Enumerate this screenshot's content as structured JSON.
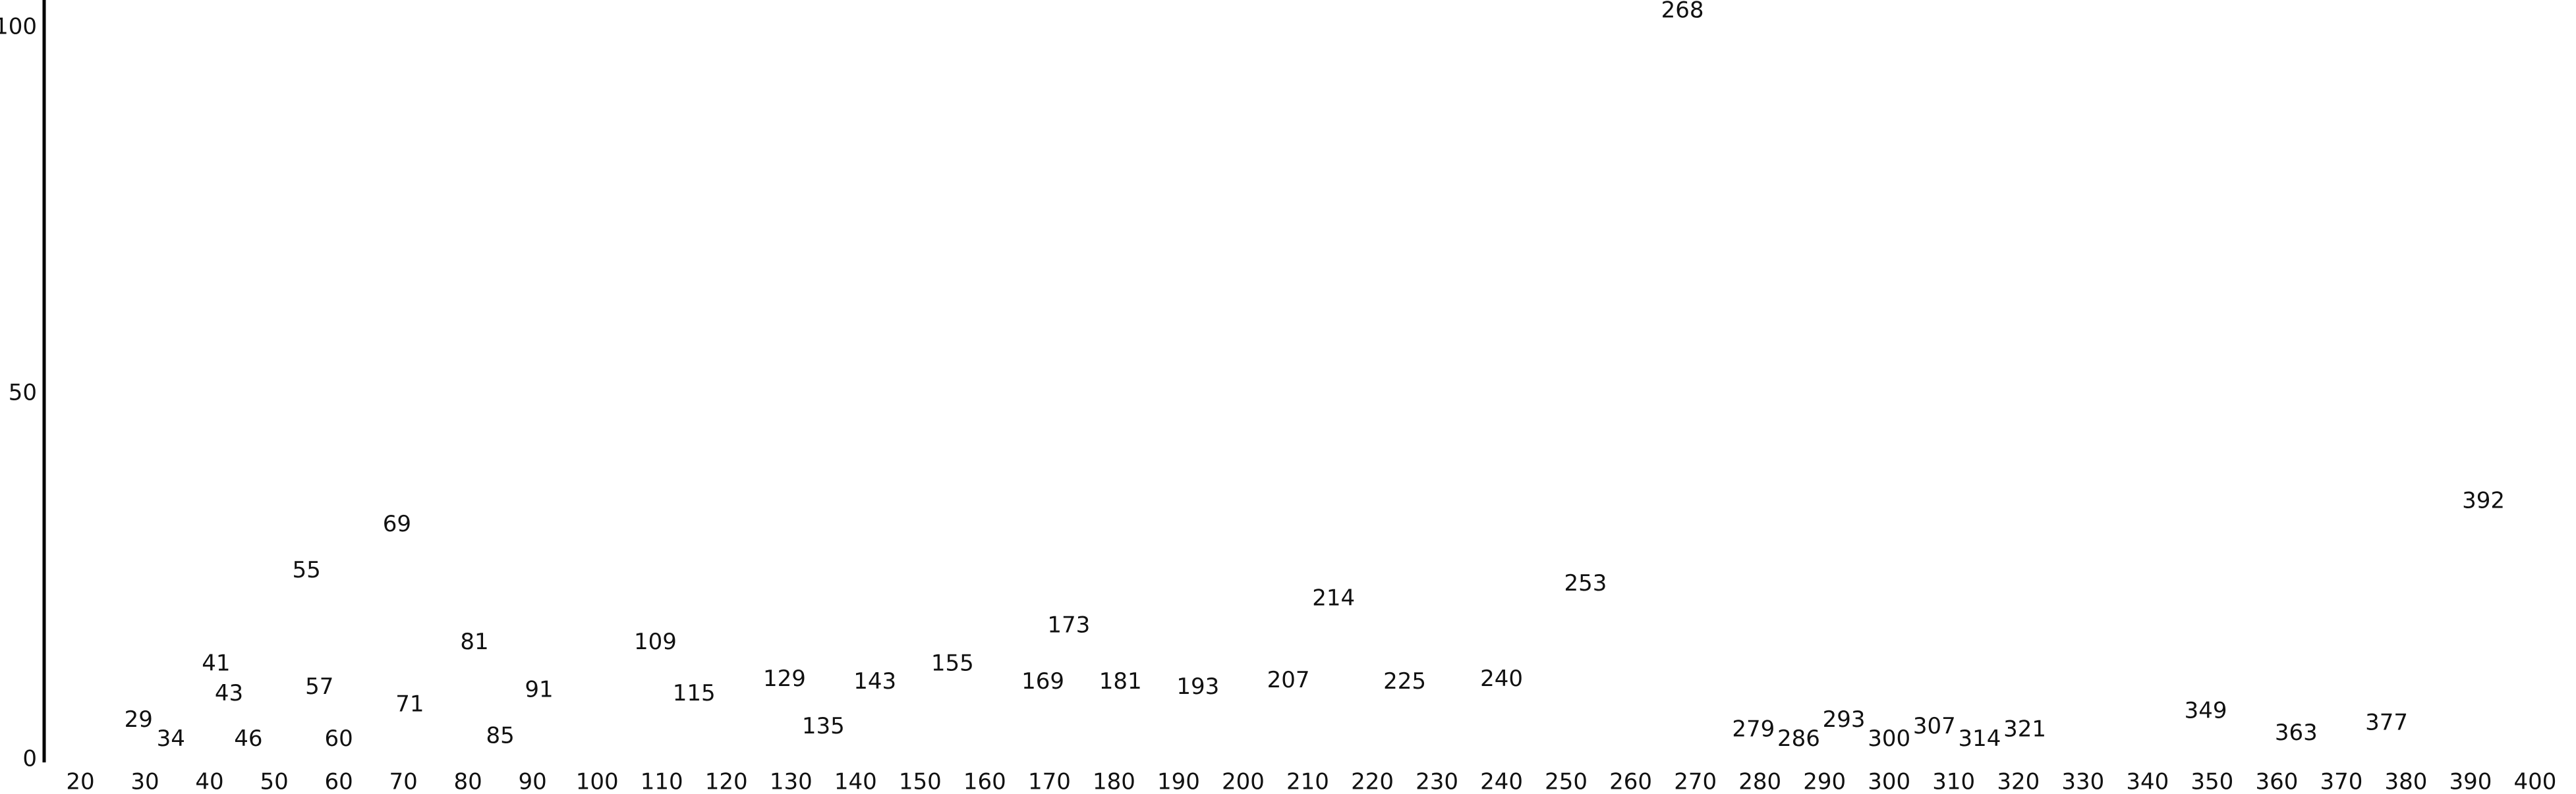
{
  "chart_data": {
    "type": "spectrum-labels",
    "x": [
      29,
      34,
      41,
      43,
      46,
      55,
      57,
      60,
      69,
      71,
      81,
      85,
      91,
      109,
      115,
      129,
      135,
      143,
      155,
      169,
      173,
      181,
      193,
      207,
      214,
      225,
      240,
      253,
      268,
      279,
      286,
      293,
      300,
      307,
      314,
      321,
      349,
      363,
      377,
      392
    ],
    "values": [
      3.1,
      0.5,
      10.8,
      6.7,
      0.5,
      23.5,
      7.6,
      0.5,
      29.8,
      5.2,
      13.7,
      0.9,
      7.2,
      13.7,
      6.7,
      8.7,
      2.2,
      8.3,
      10.8,
      8.3,
      16,
      8.3,
      7.6,
      8.5,
      19.7,
      8.3,
      8.7,
      21.7,
      100,
      1.8,
      0.5,
      3.1,
      0.5,
      2.2,
      0.5,
      1.8,
      4.3,
      1.3,
      2.7,
      33
    ],
    "xlim": [
      20,
      400
    ],
    "xticks": [
      20,
      30,
      40,
      50,
      60,
      70,
      80,
      90,
      100,
      110,
      120,
      130,
      140,
      150,
      160,
      170,
      180,
      190,
      200,
      210,
      220,
      230,
      240,
      250,
      260,
      270,
      280,
      290,
      300,
      310,
      320,
      330,
      340,
      350,
      360,
      370,
      380,
      390,
      400
    ],
    "ylim": [
      0,
      100
    ],
    "yticks": [
      0,
      50,
      100
    ]
  }
}
